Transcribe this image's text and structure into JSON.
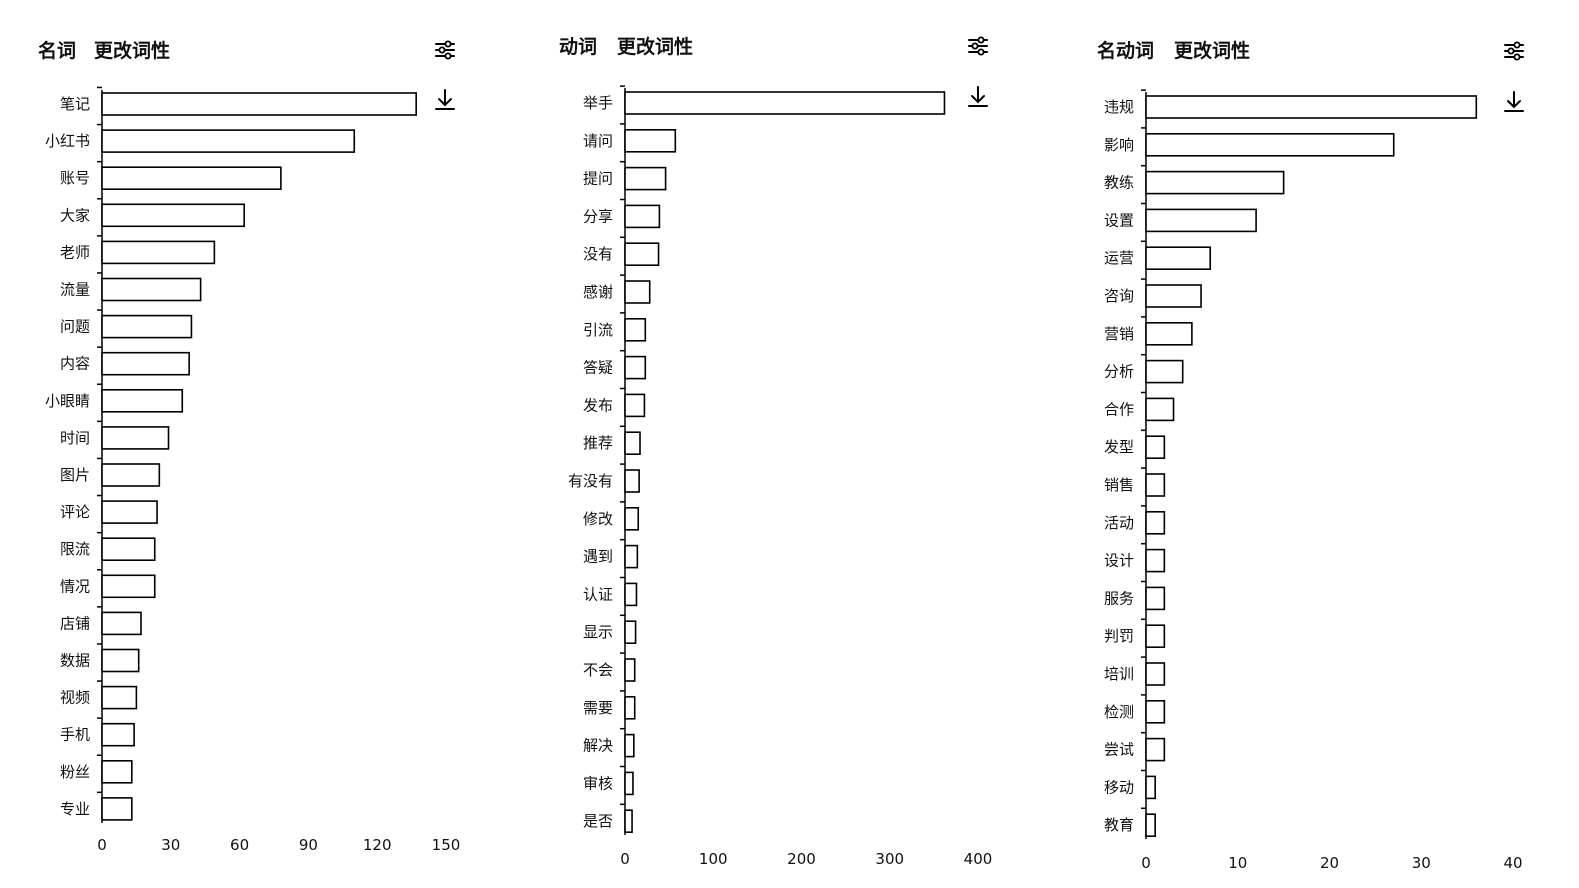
{
  "chart_data": [
    {
      "type": "bar",
      "orientation": "horizontal",
      "title": "名词",
      "action_label": "更改词性",
      "categories": [
        "笔记",
        "小红书",
        "账号",
        "大家",
        "老师",
        "流量",
        "问题",
        "内容",
        "小眼睛",
        "时间",
        "图片",
        "评论",
        "限流",
        "情况",
        "店铺",
        "数据",
        "视频",
        "手机",
        "粉丝",
        "专业"
      ],
      "values": [
        137,
        110,
        78,
        62,
        49,
        43,
        39,
        38,
        35,
        29,
        25,
        24,
        23,
        23,
        17,
        16,
        15,
        14,
        13,
        13
      ],
      "xlim": [
        0,
        150
      ],
      "xticks": [
        0,
        30,
        60,
        90,
        120,
        150
      ],
      "xlabel": "",
      "ylabel": ""
    },
    {
      "type": "bar",
      "orientation": "horizontal",
      "title": "动词",
      "action_label": "更改词性",
      "categories": [
        "举手",
        "请问",
        "提问",
        "分享",
        "没有",
        "感谢",
        "引流",
        "答疑",
        "发布",
        "推荐",
        "有没有",
        "修改",
        "遇到",
        "认证",
        "显示",
        "不会",
        "需要",
        "解决",
        "审核",
        "是否"
      ],
      "values": [
        362,
        57,
        46,
        39,
        38,
        28,
        23,
        23,
        22,
        17,
        16,
        15,
        14,
        13,
        12,
        11,
        11,
        10,
        9,
        8
      ],
      "xlim": [
        0,
        400
      ],
      "xticks": [
        0,
        100,
        200,
        300,
        400
      ],
      "xlabel": "",
      "ylabel": ""
    },
    {
      "type": "bar",
      "orientation": "horizontal",
      "title": "名动词",
      "action_label": "更改词性",
      "categories": [
        "违规",
        "影响",
        "教练",
        "设置",
        "运营",
        "咨询",
        "营销",
        "分析",
        "合作",
        "发型",
        "销售",
        "活动",
        "设计",
        "服务",
        "判罚",
        "培训",
        "检测",
        "尝试",
        "移动",
        "教育"
      ],
      "values": [
        36,
        27,
        15,
        12,
        7,
        6,
        5,
        4,
        3,
        2,
        2,
        2,
        2,
        2,
        2,
        2,
        2,
        2,
        1,
        1
      ],
      "xlim": [
        0,
        40
      ],
      "xticks": [
        0,
        10,
        20,
        30,
        40
      ],
      "xlabel": "",
      "ylabel": ""
    }
  ],
  "icons": {
    "settings": "sliders-icon",
    "download": "download-icon"
  }
}
